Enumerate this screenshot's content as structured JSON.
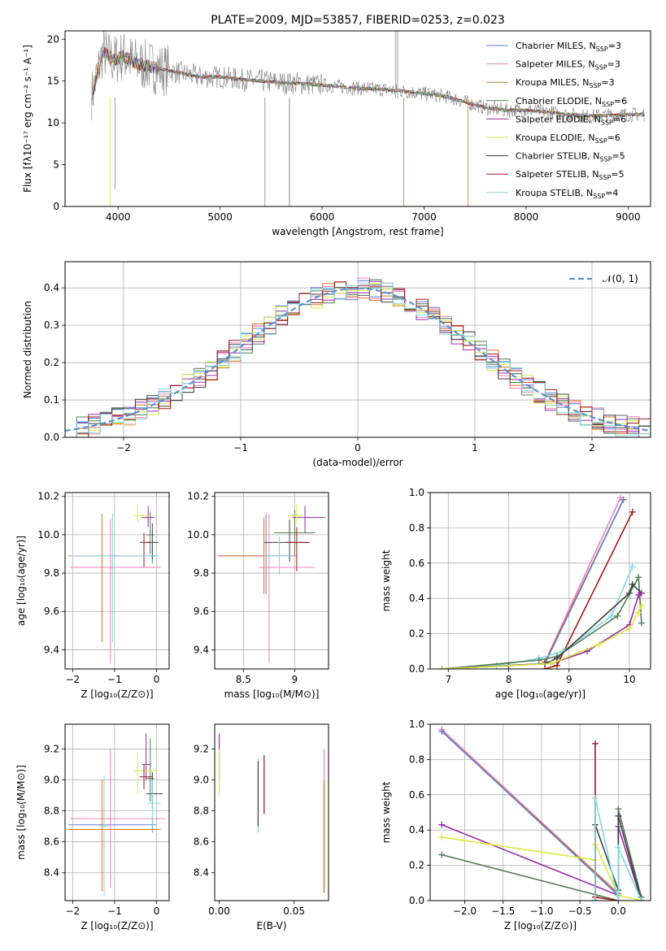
{
  "chart_data": [
    {
      "id": "spectrum",
      "type": "line",
      "title": "PLATE=2009, MJD=53857, FIBERID=0253, z=0.023",
      "xlabel": "wavelength [Angstrom, rest frame]",
      "ylabel": "Flux [fλ10⁻¹⁷ erg cm⁻² s⁻¹ A⁻¹]",
      "xlim": [
        3480,
        9220
      ],
      "ylim": [
        0,
        21
      ],
      "xticks": [
        4000,
        5000,
        6000,
        7000,
        8000,
        9000
      ],
      "yticks": [
        0,
        5,
        10,
        15,
        20
      ],
      "grid": false,
      "legend_position": "top-right",
      "data_x": [
        3750,
        3850,
        3950,
        4050,
        4200,
        4400,
        4600,
        4800,
        5000,
        5200,
        5400,
        5600,
        5800,
        6000,
        6200,
        6400,
        6600,
        6800,
        7000,
        7200,
        7400,
        7600,
        7800,
        8000,
        8200,
        8400,
        8600,
        8800,
        9000,
        9150
      ],
      "data_y": [
        13.5,
        18.5,
        17.5,
        18.0,
        17.0,
        16.5,
        16.0,
        15.5,
        15.5,
        15.2,
        15.0,
        14.8,
        14.7,
        14.5,
        14.3,
        14.1,
        14.0,
        13.8,
        13.5,
        13.2,
        12.5,
        11.8,
        11.5,
        11.5,
        11.3,
        11.0,
        10.8,
        10.9,
        11.0,
        11.0
      ],
      "series": [
        {
          "name": "Chabrier MILES, N",
          "sub": "SSP",
          "suffix": "=3",
          "color": "#5b7fd6"
        },
        {
          "name": "Salpeter MILES, N",
          "sub": "SSP",
          "suffix": "=3",
          "color": "#f080b8"
        },
        {
          "name": "Kroupa MILES, N",
          "sub": "SSP",
          "suffix": "=3",
          "color": "#b0802a"
        },
        {
          "name": "Chabrier ELODIE, N",
          "sub": "SSP",
          "suffix": "=6",
          "color": "#4f7a55"
        },
        {
          "name": "Salpeter ELODIE, N",
          "sub": "SSP",
          "suffix": "=6",
          "color": "#9a2aa8"
        },
        {
          "name": "Kroupa ELODIE, N",
          "sub": "SSP",
          "suffix": "=6",
          "color": "#d8e840"
        },
        {
          "name": "Chabrier STELIB, N",
          "sub": "SSP",
          "suffix": "=5",
          "color": "#404040"
        },
        {
          "name": "Salpeter STELIB, N",
          "sub": "SSP",
          "suffix": "=5",
          "color": "#a01818"
        },
        {
          "name": "Kroupa STELIB, N",
          "sub": "SSP",
          "suffix": "=4",
          "color": "#7ed8dc"
        }
      ],
      "data_color": "#808080"
    },
    {
      "id": "residuals",
      "type": "line",
      "xlabel": "(data-model)/error",
      "ylabel": "Normed distribution",
      "xlim": [
        -2.5,
        2.5
      ],
      "ylim": [
        0,
        0.47
      ],
      "xticks": [
        -2,
        -1,
        0,
        1,
        2
      ],
      "yticks": [
        0.0,
        0.1,
        0.2,
        0.3,
        0.4
      ],
      "grid": true,
      "legend_position": "top-right",
      "legend": "𝒩(0, 1)",
      "gaussian_color": "#5b8fd6",
      "hist_colors": [
        "#5b7fd6",
        "#f080b8",
        "#e07028",
        "#4f7a55",
        "#9a2aa8",
        "#d8e840",
        "#404040",
        "#a01818",
        "#7ed8dc"
      ],
      "bin_width": 0.1
    },
    {
      "id": "age-vs-z",
      "type": "scatter",
      "xlabel": "Z [log₁₀(Z/Z⊙)]",
      "ylabel": "age  [log₁₀(age/yr)]",
      "xlim": [
        -2.18,
        0.3
      ],
      "ylim": [
        9.3,
        10.22
      ],
      "xticks": [
        -2,
        -1,
        0
      ],
      "yticks": [
        9.4,
        9.6,
        9.8,
        10.0,
        10.2
      ],
      "grid": true,
      "points": [
        {
          "x": -0.1,
          "y": 9.89,
          "xl": 0.15,
          "xh": 0.1,
          "yl": 0.04,
          "yh": 0.05,
          "color": "#5b7fd6"
        },
        {
          "x": -1.1,
          "y": 9.83,
          "xl": 0.95,
          "xh": 1.2,
          "yl": 0.5,
          "yh": 0.25,
          "color": "#f080b8"
        },
        {
          "x": -1.3,
          "y": 9.89,
          "xl": 0.8,
          "xh": 1.0,
          "yl": 0.45,
          "yh": 0.22,
          "color": "#e07028"
        },
        {
          "x": -0.15,
          "y": 10.0,
          "xl": 0.1,
          "xh": 0.1,
          "yl": 0.1,
          "yh": 0.12,
          "color": "#4f7a55"
        },
        {
          "x": -0.2,
          "y": 10.09,
          "xl": 0.15,
          "xh": 0.15,
          "yl": 0.05,
          "yh": 0.06,
          "color": "#9a2aa8"
        },
        {
          "x": -0.45,
          "y": 10.1,
          "xl": 0.1,
          "xh": 0.3,
          "yl": 0.04,
          "yh": 0.06,
          "color": "#d8e840"
        },
        {
          "x": -0.1,
          "y": 9.96,
          "xl": 0.12,
          "xh": 0.15,
          "yl": 0.09,
          "yh": 0.1,
          "color": "#404040"
        },
        {
          "x": -0.3,
          "y": 9.96,
          "xl": 0.1,
          "xh": 0.15,
          "yl": 0.13,
          "yh": 0.05,
          "color": "#a01818"
        },
        {
          "x": -1.05,
          "y": 9.89,
          "xl": 1.0,
          "xh": 1.1,
          "yl": 0.45,
          "yh": 0.22,
          "color": "#7ed8dc"
        }
      ]
    },
    {
      "id": "age-vs-mass",
      "type": "scatter",
      "xlabel": "mass [log₁₀(M/M⊙)]",
      "ylabel": "",
      "xlim": [
        8.22,
        9.33
      ],
      "ylim": [
        9.3,
        10.22
      ],
      "xticks": [
        8.5,
        9.0
      ],
      "yticks": [
        9.4,
        9.6,
        9.8,
        10.0,
        10.2
      ],
      "grid": true,
      "points": [
        {
          "x": 8.72,
          "y": 9.89,
          "xl": 0.45,
          "xh": 0.3,
          "yl": 0.2,
          "yh": 0.22,
          "color": "#5b7fd6"
        },
        {
          "x": 8.75,
          "y": 9.83,
          "xl": 0.1,
          "xh": 0.45,
          "yl": 0.5,
          "yh": 0.28,
          "color": "#f080b8"
        },
        {
          "x": 8.7,
          "y": 9.89,
          "xl": 0.45,
          "xh": 0.3,
          "yl": 0.2,
          "yh": 0.2,
          "color": "#e07028"
        },
        {
          "x": 9.0,
          "y": 10.01,
          "xl": 0.2,
          "xh": 0.2,
          "yl": 0.12,
          "yh": 0.12,
          "color": "#4f7a55"
        },
        {
          "x": 9.1,
          "y": 10.09,
          "xl": 0.12,
          "xh": 0.2,
          "yl": 0.08,
          "yh": 0.06,
          "color": "#9a2aa8"
        },
        {
          "x": 9.02,
          "y": 10.1,
          "xl": 0.08,
          "xh": 0.06,
          "yl": 0.04,
          "yh": 0.06,
          "color": "#d8e840"
        },
        {
          "x": 8.95,
          "y": 9.96,
          "xl": 0.25,
          "xh": 0.2,
          "yl": 0.1,
          "yh": 0.12,
          "color": "#404040"
        },
        {
          "x": 9.02,
          "y": 9.96,
          "xl": 0.1,
          "xh": 0.12,
          "yl": 0.15,
          "yh": 0.08,
          "color": "#a01818"
        },
        {
          "x": 8.85,
          "y": 9.89,
          "xl": 0.15,
          "xh": 0.15,
          "yl": 0.1,
          "yh": 0.1,
          "color": "#7ed8dc"
        }
      ]
    },
    {
      "id": "weight-vs-age",
      "type": "line",
      "xlabel": "age  [log₁₀(age/yr)]",
      "ylabel": "mass weight",
      "xlim": [
        6.7,
        10.35
      ],
      "ylim": [
        0,
        1.0
      ],
      "xticks": [
        7,
        8,
        9,
        10
      ],
      "yticks": [
        0.0,
        0.2,
        0.4,
        0.6,
        0.8,
        1.0
      ],
      "grid": true,
      "series": [
        {
          "color": "#f080b8",
          "x": [
            8.6,
            9.85
          ],
          "y": [
            0.04,
            0.97
          ]
        },
        {
          "color": "#e07028",
          "x": [
            8.6,
            9.9
          ],
          "y": [
            0.04,
            0.96
          ]
        },
        {
          "color": "#5b7fd6",
          "x": [
            8.6,
            9.9
          ],
          "y": [
            0.03,
            0.96
          ]
        },
        {
          "color": "#a01818",
          "x": [
            8.6,
            8.8,
            10.05
          ],
          "y": [
            0.0,
            0.02,
            0.89
          ]
        },
        {
          "color": "#7ed8dc",
          "x": [
            6.9,
            7.8,
            8.5,
            8.9,
            9.7,
            10.05
          ],
          "y": [
            0.0,
            0.02,
            0.06,
            0.1,
            0.3,
            0.58
          ]
        },
        {
          "color": "#4f7a55",
          "x": [
            6.9,
            8.5,
            8.8,
            9.8,
            10.15,
            10.2
          ],
          "y": [
            0.0,
            0.05,
            0.07,
            0.3,
            0.52,
            0.26
          ]
        },
        {
          "color": "#404040",
          "x": [
            6.9,
            8.0,
            8.6,
            8.8,
            10.0,
            10.05,
            10.2
          ],
          "y": [
            0.0,
            0.02,
            0.03,
            0.06,
            0.43,
            0.48,
            0.43
          ]
        },
        {
          "color": "#9a2aa8",
          "x": [
            6.9,
            8.7,
            9.3,
            10.0,
            10.15,
            10.2
          ],
          "y": [
            0.0,
            0.03,
            0.1,
            0.25,
            0.42,
            0.43
          ]
        },
        {
          "color": "#d8e840",
          "x": [
            6.9,
            8.7,
            9.5,
            10.0,
            10.15,
            10.2
          ],
          "y": [
            0.0,
            0.03,
            0.14,
            0.23,
            0.32,
            0.36
          ]
        }
      ]
    },
    {
      "id": "mass-vs-z",
      "type": "scatter",
      "xlabel": "Z [log₁₀(Z/Z⊙)]",
      "ylabel": "mass [log₁₀(M/M⊙)]",
      "xlim": [
        -2.18,
        0.3
      ],
      "ylim": [
        8.22,
        9.36
      ],
      "xticks": [
        -2,
        -1,
        0
      ],
      "yticks": [
        8.4,
        8.6,
        8.8,
        9.0,
        9.2
      ],
      "grid": true,
      "points": [
        {
          "x": -0.1,
          "y": 8.71,
          "xl": 2.0,
          "xh": 0.1,
          "yl": 0.05,
          "yh": 0.05,
          "color": "#5b7fd6"
        },
        {
          "x": -1.1,
          "y": 8.75,
          "xl": 0.95,
          "xh": 1.3,
          "yl": 0.45,
          "yh": 0.45,
          "color": "#f080b8"
        },
        {
          "x": -1.3,
          "y": 8.68,
          "xl": 0.8,
          "xh": 1.4,
          "yl": 0.4,
          "yh": 0.32,
          "color": "#e07028"
        },
        {
          "x": -0.15,
          "y": 9.01,
          "xl": 0.1,
          "xh": 0.1,
          "yl": 0.15,
          "yh": 0.26,
          "color": "#4f7a55"
        },
        {
          "x": -0.25,
          "y": 9.1,
          "xl": 0.1,
          "xh": 0.1,
          "yl": 0.1,
          "yh": 0.2,
          "color": "#9a2aa8"
        },
        {
          "x": -0.45,
          "y": 9.06,
          "xl": 0.1,
          "xh": 0.5,
          "yl": 0.15,
          "yh": 0.12,
          "color": "#d8e840"
        },
        {
          "x": -0.1,
          "y": 8.91,
          "xl": 0.15,
          "xh": 0.25,
          "yl": 0.1,
          "yh": 0.14,
          "color": "#404040"
        },
        {
          "x": -0.3,
          "y": 9.02,
          "xl": 0.1,
          "xh": 0.2,
          "yl": 0.08,
          "yh": 0.08,
          "color": "#a01818"
        },
        {
          "x": -0.1,
          "y": 8.85,
          "xl": 0.1,
          "xh": 0.2,
          "yl": 0.15,
          "yh": 0.15,
          "color": "#7ed8dc"
        },
        {
          "x": -1.25,
          "y": 8.7,
          "xl": 0.1,
          "xh": 0.1,
          "yl": 0.45,
          "yh": 0.33,
          "color": "#7ed8dc"
        }
      ]
    },
    {
      "id": "mass-vs-ebv",
      "type": "scatter",
      "xlabel": "E(B-V)",
      "ylabel": "",
      "xlim": [
        -0.003,
        0.073
      ],
      "ylim": [
        8.22,
        9.36
      ],
      "xticks": [
        0.0,
        0.05
      ],
      "xtick_labels": [
        "0.00",
        "0.05"
      ],
      "yticks": [
        8.4,
        8.6,
        8.8,
        9.0,
        9.2
      ],
      "grid": false,
      "points": [
        {
          "x": 0.0,
          "y": 9.1,
          "yl": 0.1,
          "yh": 0.2,
          "color": "#9a2aa8"
        },
        {
          "x": 0.0,
          "y": 9.0,
          "yl": 0.1,
          "yh": 0.2,
          "color": "#d8e840"
        },
        {
          "x": 0.026,
          "y": 8.9,
          "yl": 0.24,
          "yh": 0.24,
          "color": "#7ed8dc"
        },
        {
          "x": 0.026,
          "y": 8.9,
          "yl": 0.2,
          "yh": 0.22,
          "color": "#404040"
        },
        {
          "x": 0.03,
          "y": 8.97,
          "yl": 0.19,
          "yh": 0.19,
          "color": "#a01818"
        },
        {
          "x": 0.07,
          "y": 8.72,
          "yl": 0.45,
          "yh": 0.48,
          "color": "#f080b8"
        },
        {
          "x": 0.07,
          "y": 8.65,
          "yl": 0.38,
          "yh": 0.35,
          "color": "#e07028"
        }
      ]
    },
    {
      "id": "weight-vs-z",
      "type": "line",
      "xlabel": "Z [log₁₀(Z/Z⊙)]",
      "ylabel": "mass weight",
      "xlim": [
        -2.45,
        0.42
      ],
      "ylim": [
        0,
        1.0
      ],
      "xticks": [
        -2.0,
        -1.5,
        -1.0,
        -0.5,
        0.0
      ],
      "xtick_labels": [
        "−2.0",
        "−1.5",
        "−1.0",
        "−0.5",
        "0.0"
      ],
      "yticks": [
        0.0,
        0.2,
        0.4,
        0.6,
        0.8,
        1.0
      ],
      "grid": true,
      "series": [
        {
          "color": "#f080b8",
          "x": [
            -2.3,
            0.0
          ],
          "y": [
            0.97,
            0.04
          ]
        },
        {
          "color": "#e07028",
          "x": [
            -2.3,
            0.0
          ],
          "y": [
            0.96,
            0.04
          ]
        },
        {
          "color": "#5b7fd6",
          "x": [
            -2.3,
            0.0
          ],
          "y": [
            0.96,
            0.03
          ]
        },
        {
          "color": "#9a2aa8",
          "x": [
            -2.3,
            0.0,
            0.0,
            0.3
          ],
          "y": [
            0.43,
            0.03,
            0.42,
            0.0
          ]
        },
        {
          "color": "#d8e840",
          "x": [
            -2.3,
            -0.3,
            -0.3,
            0.0,
            0.3
          ],
          "y": [
            0.36,
            0.23,
            0.32,
            0.03,
            0.0
          ]
        },
        {
          "color": "#4f7a55",
          "x": [
            -2.3,
            0.0,
            0.0,
            0.3
          ],
          "y": [
            0.26,
            0.0,
            0.52,
            0.02
          ]
        },
        {
          "color": "#404040",
          "x": [
            -0.3,
            -0.3,
            0.0,
            0.0,
            0.3
          ],
          "y": [
            0.0,
            0.43,
            0.06,
            0.48,
            0.0
          ]
        },
        {
          "color": "#a01818",
          "x": [
            -0.3,
            -0.3,
            -0.3,
            0.0
          ],
          "y": [
            0.0,
            0.89,
            0.02,
            0.0
          ]
        },
        {
          "color": "#7ed8dc",
          "x": [
            -0.3,
            -0.3,
            0.0,
            0.0,
            0.3
          ],
          "y": [
            0.0,
            0.58,
            0.0,
            0.3,
            0.0
          ]
        }
      ]
    }
  ]
}
